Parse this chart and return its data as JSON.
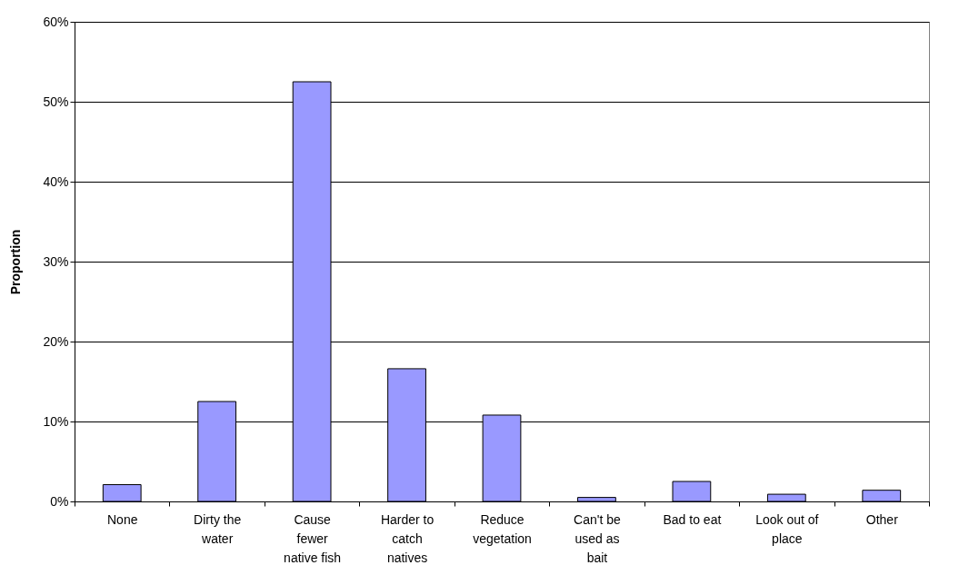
{
  "chart_data": {
    "type": "bar",
    "ylabel": "Proportion",
    "categories": [
      "None",
      "Dirty the water",
      "Cause fewer native fish",
      "Harder to catch natives",
      "Reduce vegetation",
      "Can't be used as bait",
      "Bad to eat",
      "Look out of place",
      "Other"
    ],
    "values": [
      2.1,
      12.5,
      52.5,
      16.6,
      10.8,
      0.5,
      2.5,
      0.9,
      1.4
    ],
    "color": "#9999ff",
    "ylim": [
      0,
      60
    ],
    "yticks": [
      {
        "value": 0,
        "label": "0%"
      },
      {
        "value": 10,
        "label": "10%"
      },
      {
        "value": 20,
        "label": "20%"
      },
      {
        "value": 30,
        "label": "30%"
      },
      {
        "value": 40,
        "label": "40%"
      },
      {
        "value": 50,
        "label": "50%"
      },
      {
        "value": 60,
        "label": "60%"
      }
    ],
    "grid": "y"
  }
}
